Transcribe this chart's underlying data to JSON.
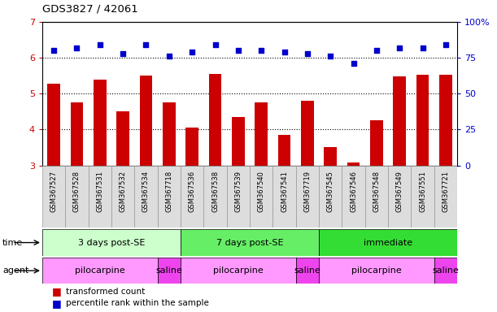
{
  "title": "GDS3827 / 42061",
  "samples": [
    "GSM367527",
    "GSM367528",
    "GSM367531",
    "GSM367532",
    "GSM367534",
    "GSM367718",
    "GSM367536",
    "GSM367538",
    "GSM367539",
    "GSM367540",
    "GSM367541",
    "GSM367719",
    "GSM367545",
    "GSM367546",
    "GSM367548",
    "GSM367549",
    "GSM367551",
    "GSM367721"
  ],
  "bar_values": [
    5.28,
    4.75,
    5.38,
    4.5,
    5.5,
    4.75,
    4.05,
    5.55,
    4.35,
    4.75,
    3.85,
    4.8,
    3.52,
    3.08,
    4.25,
    5.48,
    5.52,
    5.52
  ],
  "dot_values": [
    80,
    82,
    84,
    78,
    84,
    76,
    79,
    84,
    80,
    80,
    79,
    78,
    76,
    71,
    80,
    82,
    82,
    84
  ],
  "bar_color": "#CC0000",
  "dot_color": "#0000CC",
  "ylim_left": [
    3,
    7
  ],
  "ylim_right": [
    0,
    100
  ],
  "yticks_left": [
    3,
    4,
    5,
    6,
    7
  ],
  "yticks_right": [
    0,
    25,
    50,
    75,
    100
  ],
  "right_tick_labels": [
    "0",
    "25",
    "50",
    "75",
    "100%"
  ],
  "time_groups": [
    {
      "label": "3 days post-SE",
      "start": 0,
      "end": 6,
      "color": "#CCFFCC"
    },
    {
      "label": "7 days post-SE",
      "start": 6,
      "end": 12,
      "color": "#66EE66"
    },
    {
      "label": "immediate",
      "start": 12,
      "end": 18,
      "color": "#33DD33"
    }
  ],
  "agent_groups": [
    {
      "label": "pilocarpine",
      "start": 0,
      "end": 5,
      "color": "#FF99FF"
    },
    {
      "label": "saline",
      "start": 5,
      "end": 6,
      "color": "#EE44EE"
    },
    {
      "label": "pilocarpine",
      "start": 6,
      "end": 11,
      "color": "#FF99FF"
    },
    {
      "label": "saline",
      "start": 11,
      "end": 12,
      "color": "#EE44EE"
    },
    {
      "label": "pilocarpine",
      "start": 12,
      "end": 17,
      "color": "#FF99FF"
    },
    {
      "label": "saline",
      "start": 17,
      "end": 18,
      "color": "#EE44EE"
    }
  ],
  "time_label": "time",
  "agent_label": "agent",
  "legend_bar_label": "transformed count",
  "legend_dot_label": "percentile rank within the sample",
  "grid_lines": [
    4,
    5,
    6
  ],
  "background_color": "#FFFFFF",
  "xtick_bg": "#DDDDDD"
}
